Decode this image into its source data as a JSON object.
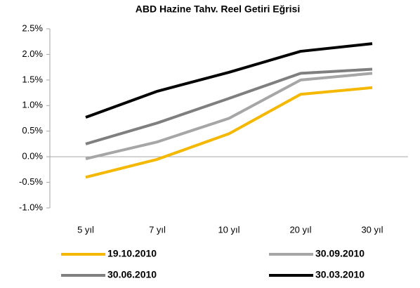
{
  "chart_data": {
    "type": "line",
    "title": "ABD Hazine Tahv. Reel Getiri Eğrisi",
    "categories": [
      "5 yıl",
      "7 yıl",
      "10 yıl",
      "20 yıl",
      "30 yıl"
    ],
    "series": [
      {
        "name": "19.10.2010",
        "color": "#f5b800",
        "values": [
          -0.4,
          -0.05,
          0.45,
          1.22,
          1.35
        ]
      },
      {
        "name": "30.09.2010",
        "color": "#a6a6a6",
        "values": [
          -0.04,
          0.29,
          0.75,
          1.5,
          1.63
        ]
      },
      {
        "name": "30.06.2010",
        "color": "#7f7f7f",
        "values": [
          0.25,
          0.66,
          1.14,
          1.63,
          1.71
        ]
      },
      {
        "name": "30.03.2010",
        "color": "#000000",
        "values": [
          0.77,
          1.28,
          1.65,
          2.06,
          2.21
        ]
      }
    ],
    "ylim": [
      -1.0,
      2.5
    ],
    "yticks": [
      {
        "value": -1.0,
        "label": "-1.0%"
      },
      {
        "value": -0.5,
        "label": "-0.5%"
      },
      {
        "value": 0.0,
        "label": "0.0%"
      },
      {
        "value": 0.5,
        "label": "0.5%"
      },
      {
        "value": 1.0,
        "label": "1.0%"
      },
      {
        "value": 1.5,
        "label": "1.5%"
      },
      {
        "value": 2.0,
        "label": "2.0%"
      },
      {
        "value": 2.5,
        "label": "2.5%"
      }
    ],
    "grid": false,
    "legend": "bottom"
  }
}
